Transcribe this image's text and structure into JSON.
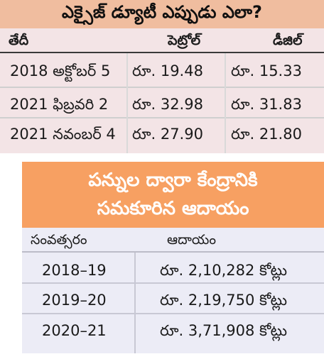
{
  "excise_table": {
    "title": "ఎక్సైజ్ డ్యూటీ ఎప్పుడు ఎలా?",
    "headers": [
      "తేదీ",
      "పెట్రోల్",
      "డీజిల్"
    ],
    "rows": [
      {
        "date": "2018 అక్టోబర్ 5",
        "petrol": "రూ. 19.48",
        "diesel": "రూ. 15.33"
      },
      {
        "date": "2021 ఫిబ్రవరి 2",
        "petrol": "రూ. 32.98",
        "diesel": "రూ. 31.83"
      },
      {
        "date": "2021 నవంబర్ 4",
        "petrol": "రూ. 27.90",
        "diesel": "రూ. 21.80"
      }
    ]
  },
  "revenue_table": {
    "title_line1": "పన్నుల ద్వారా కేంద్రానికి",
    "title_line2": "సమకూరిన ఆదాయం",
    "headers": [
      "సంవత్సరం",
      "ఆదాయం"
    ],
    "rows": [
      {
        "year": "2018–19",
        "income": "రూ. 2,10,282 కోట్లు"
      },
      {
        "year": "2019–20",
        "income": "రూ. 2,19,750 కోట్లు"
      },
      {
        "year": "2020–21",
        "income": "రూ. 3,71,908 కోట్లు"
      }
    ]
  },
  "colors": {
    "title1_bg": "#f0bd9f",
    "panel1_bg": "#f3e4e6",
    "title2_bg": "#f7a062",
    "panel2_bg": "#ececf6"
  }
}
